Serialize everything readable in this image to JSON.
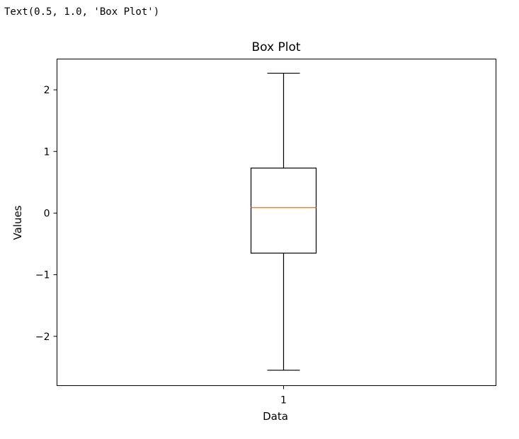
{
  "output": {
    "text": "Text(0.5, 1.0, 'Box Plot')"
  },
  "chart_data": {
    "type": "box",
    "title": "Box Plot",
    "xlabel": "Data",
    "ylabel": "Values",
    "categories": [
      "1"
    ],
    "boxes": [
      {
        "category": "1",
        "whisker_low": -2.55,
        "q1": -0.65,
        "median": 0.09,
        "q3": 0.73,
        "whisker_high": 2.27
      }
    ],
    "ylim": [
      -2.8,
      2.5
    ],
    "yticks": [
      -2,
      -1,
      0,
      1,
      2
    ],
    "ytick_labels": [
      "−2",
      "−1",
      "0",
      "1",
      "2"
    ],
    "grid": false,
    "colors": {
      "box": "#000000",
      "median": "#ff7f0e"
    }
  }
}
